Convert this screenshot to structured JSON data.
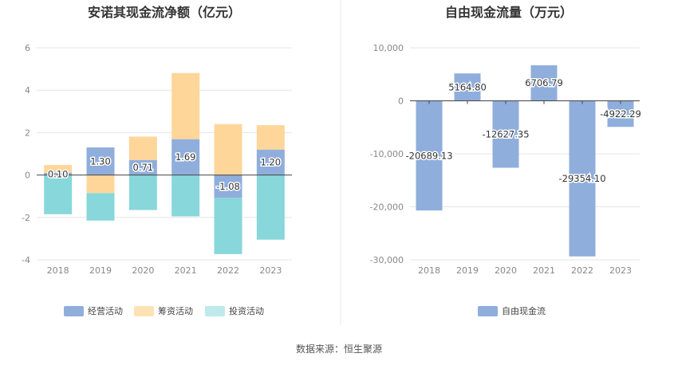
{
  "source_text": "数据来源：恒生聚源",
  "colors": {
    "operating": "#8FAEDC",
    "financing": "#FFD699",
    "investing": "#88D7DA",
    "fcf": "#8FAEDC",
    "grid": "#E6E6E6",
    "axis": "#444444",
    "divider": "#E8E8E8"
  },
  "chart_data": [
    {
      "type": "bar",
      "stacked": true,
      "title": "安诺其现金流净额（亿元）",
      "categories": [
        "2018",
        "2019",
        "2020",
        "2021",
        "2022",
        "2023"
      ],
      "series": [
        {
          "name": "经营活动",
          "values": [
            0.1,
            1.3,
            0.71,
            1.69,
            -1.08,
            1.2
          ],
          "data_labels": [
            "0.10",
            "1.30",
            "0.71",
            "1.69",
            "-1.08",
            "1.20"
          ]
        },
        {
          "name": "筹资活动",
          "values": [
            0.37,
            -0.85,
            1.1,
            3.12,
            2.4,
            1.15
          ]
        },
        {
          "name": "投资活动",
          "values": [
            -1.85,
            -1.3,
            -1.65,
            -1.95,
            -2.65,
            -3.05
          ]
        }
      ],
      "ylim": [
        -4,
        6
      ],
      "yticks": [
        -4,
        -2,
        0,
        2,
        4,
        6
      ],
      "grid": true,
      "legend": "bottom"
    },
    {
      "type": "bar",
      "title": "自由现金流量（万元）",
      "categories": [
        "2018",
        "2019",
        "2020",
        "2021",
        "2022",
        "2023"
      ],
      "series": [
        {
          "name": "自由现金流",
          "values": [
            -20689.13,
            5164.8,
            -12627.35,
            6706.79,
            -29354.1,
            -4922.29
          ],
          "data_labels": [
            "-20689.13",
            "5164.80",
            "-12627.35",
            "6706.79",
            "-29354.10",
            "-4922.29"
          ]
        }
      ],
      "ylim": [
        -30000,
        10000
      ],
      "yticks": [
        -30000,
        -20000,
        -10000,
        0,
        10000
      ],
      "ytick_labels": [
        "-30,000",
        "-20,000",
        "-10,000",
        "0",
        "10,000"
      ],
      "grid": true,
      "legend": "bottom"
    }
  ]
}
